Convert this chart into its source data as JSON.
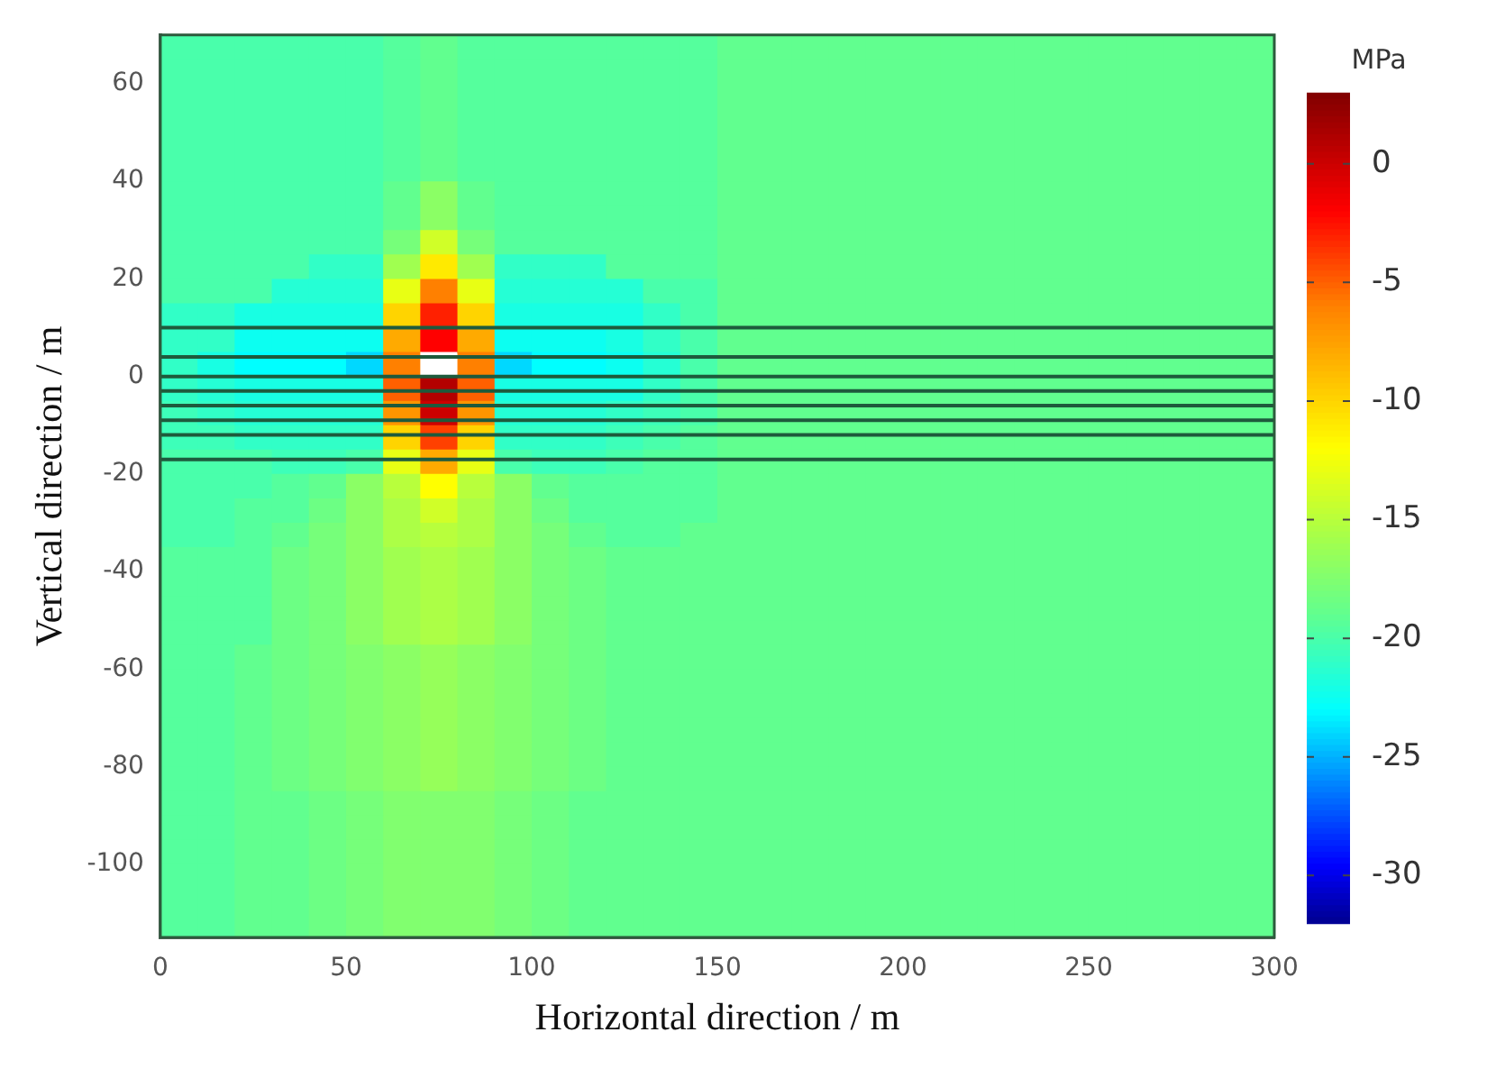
{
  "chart_data": {
    "type": "heatmap",
    "xlabel": "Horizontal direction / m",
    "ylabel": "Vertical direction / m",
    "clabel": "MPa",
    "xlim": [
      0,
      300
    ],
    "xticks": [
      0,
      50,
      100,
      150,
      200,
      250,
      300
    ],
    "ylim": [
      -115,
      70
    ],
    "yticks": [
      -100,
      -80,
      -60,
      -40,
      -20,
      0,
      20,
      40,
      60
    ],
    "clim": [
      -32,
      3
    ],
    "cticks": [
      0,
      -5,
      -10,
      -15,
      -20,
      -25,
      -30
    ],
    "cells": [
      [
        -20,
        -20,
        -20,
        -20,
        -20,
        -20,
        -19.5,
        -19,
        -19.5,
        -19.5,
        -19.5,
        -19.5,
        -19.5,
        -19.5,
        -19.5,
        -19,
        -19,
        -19,
        -19,
        -19,
        -19,
        -19,
        -19,
        -19,
        -19,
        -19,
        -19,
        -19,
        -19,
        -19
      ],
      [
        -20,
        -20,
        -20,
        -20,
        -20,
        -20,
        -19.5,
        -19,
        -19.5,
        -19.5,
        -19.5,
        -19.5,
        -19.5,
        -19.5,
        -19.5,
        -19,
        -19,
        -19,
        -19,
        -19,
        -19,
        -19,
        -19,
        -19,
        -19,
        -19,
        -19,
        -19,
        -19,
        -19
      ],
      [
        -20,
        -20,
        -20,
        -20,
        -20,
        -20,
        -19.5,
        -19,
        -19.5,
        -19.5,
        -19.5,
        -19.5,
        -19.5,
        -19.5,
        -19.5,
        -19,
        -19,
        -19,
        -19,
        -19,
        -19,
        -19,
        -19,
        -19,
        -19,
        -19,
        -19,
        -19,
        -19,
        -19
      ],
      [
        -20,
        -20,
        -20,
        -20,
        -20,
        -20,
        -19.5,
        -19,
        -19.5,
        -19.5,
        -19.5,
        -19.5,
        -19.5,
        -19.5,
        -19.5,
        -19,
        -19,
        -19,
        -19,
        -19,
        -19,
        -19,
        -19,
        -19,
        -19,
        -19,
        -19,
        -19,
        -19,
        -19
      ],
      [
        -20,
        -20,
        -20,
        -20,
        -20,
        -20,
        -19.5,
        -19,
        -19.5,
        -19.5,
        -19.5,
        -19.5,
        -19.5,
        -19.5,
        -19.5,
        -19,
        -19,
        -19,
        -19,
        -19,
        -19,
        -19,
        -19,
        -19,
        -19,
        -19,
        -19,
        -19,
        -19,
        -19
      ],
      [
        -20,
        -20,
        -20,
        -20,
        -20,
        -20,
        -19.5,
        -19,
        -19.5,
        -19.5,
        -19.5,
        -19.5,
        -19.5,
        -19.5,
        -19.5,
        -19,
        -19,
        -19,
        -19,
        -19,
        -19,
        -19,
        -19,
        -19,
        -19,
        -19,
        -19,
        -19,
        -19,
        -19
      ],
      [
        -20,
        -20,
        -20,
        -20,
        -20,
        -20,
        -19,
        -17,
        -19,
        -19.5,
        -19.5,
        -19.5,
        -19.5,
        -19.5,
        -19.5,
        -19,
        -19,
        -19,
        -19,
        -19,
        -19,
        -19,
        -19,
        -19,
        -19,
        -19,
        -19,
        -19,
        -19,
        -19
      ],
      [
        -20,
        -20,
        -20,
        -20,
        -20,
        -20,
        -19,
        -17,
        -19,
        -19.5,
        -19.5,
        -19.5,
        -19.5,
        -19.5,
        -19.5,
        -19,
        -19,
        -19,
        -19,
        -19,
        -19,
        -19,
        -19,
        -19,
        -19,
        -19,
        -19,
        -19,
        -19,
        -19
      ],
      [
        -20,
        -20,
        -20,
        -20,
        -20,
        -20,
        -18,
        -14,
        -18,
        -19.5,
        -19.5,
        -19.5,
        -19.5,
        -19.5,
        -19.5,
        -19,
        -19,
        -19,
        -19,
        -19,
        -19,
        -19,
        -19,
        -19,
        -19,
        -19,
        -19,
        -19,
        -19,
        -19
      ],
      [
        -20,
        -20,
        -20,
        -20,
        -21,
        -21,
        -16,
        -11,
        -16,
        -21,
        -21,
        -21,
        -19.5,
        -19.5,
        -19.5,
        -19,
        -19,
        -19,
        -19,
        -19,
        -19,
        -19,
        -19,
        -19,
        -19,
        -19,
        -19,
        -19,
        -19,
        -19
      ],
      [
        -20,
        -20,
        -20,
        -21.5,
        -21.5,
        -21.5,
        -13,
        -6,
        -13,
        -21.5,
        -21.5,
        -21.5,
        -21.5,
        -20,
        -20,
        -19,
        -19,
        -19,
        -19,
        -19,
        -19,
        -19,
        -19,
        -19,
        -19,
        -19,
        -19,
        -19,
        -19,
        -19
      ],
      [
        -21,
        -21,
        -22,
        -22,
        -22,
        -22,
        -10,
        -3,
        -10,
        -22,
        -22,
        -22,
        -22,
        -21,
        -20,
        -19,
        -19,
        -19,
        -19,
        -19,
        -19,
        -19,
        -19,
        -19,
        -19,
        -19,
        -19,
        -19,
        -19,
        -19
      ],
      [
        -21,
        -21,
        -22.5,
        -22.5,
        -22.5,
        -22.5,
        -8,
        -2,
        -8,
        -22.5,
        -22.5,
        -22.5,
        -22,
        -21,
        -20,
        -19,
        -19,
        -19,
        -19,
        -19,
        -19,
        -19,
        -19,
        -19,
        -19,
        -19,
        -19,
        -19,
        -19,
        -19
      ],
      [
        -21,
        -22,
        -23,
        -23,
        -23,
        -24,
        -6,
        null,
        -6,
        -24,
        -23,
        -23,
        -22.5,
        -21.5,
        -20,
        -19,
        -19,
        -19,
        -19,
        -19,
        -19,
        -19,
        -19,
        -19,
        -19,
        -19,
        -19,
        -19,
        -19,
        -19
      ],
      [
        -21,
        -21.5,
        -22,
        -22,
        -22,
        -22,
        -5,
        1,
        -5,
        -22,
        -22,
        -22,
        -22,
        -21,
        -20,
        -19,
        -19,
        -19,
        -19,
        -19,
        -19,
        -19,
        -19,
        -19,
        -19,
        -19,
        -19,
        -19,
        -19,
        -19
      ],
      [
        -20.5,
        -21,
        -21.5,
        -21.5,
        -21.5,
        -21.5,
        -7,
        0,
        -7,
        -21.5,
        -21.5,
        -21.5,
        -21,
        -20.5,
        -20,
        -19,
        -19,
        -19,
        -19,
        -19,
        -19,
        -19,
        -19,
        -19,
        -19,
        -19,
        -19,
        -19,
        -19,
        -19
      ],
      [
        -20.5,
        -20.5,
        -21,
        -21,
        -21,
        -21,
        -10,
        -4,
        -10,
        -21,
        -21,
        -21,
        -20.5,
        -20,
        -19.5,
        -19,
        -19,
        -19,
        -19,
        -19,
        -19,
        -19,
        -19,
        -19,
        -19,
        -19,
        -19,
        -19,
        -19,
        -19
      ],
      [
        -20,
        -20,
        -20,
        -20.5,
        -20.5,
        -20,
        -13,
        -8,
        -13,
        -20,
        -20.5,
        -20.5,
        -20,
        -19.5,
        -19.5,
        -19,
        -19,
        -19,
        -19,
        -19,
        -19,
        -19,
        -19,
        -19,
        -19,
        -19,
        -19,
        -19,
        -19,
        -19
      ],
      [
        -20,
        -20,
        -20,
        -19.5,
        -19,
        -17,
        -15,
        -12,
        -15,
        -17,
        -19,
        -19.5,
        -19.5,
        -19.5,
        -19.5,
        -19,
        -19,
        -19,
        -19,
        -19,
        -19,
        -19,
        -19,
        -19,
        -19,
        -19,
        -19,
        -19,
        -19,
        -19
      ],
      [
        -20,
        -20,
        -19.5,
        -19.5,
        -18.5,
        -17,
        -15.5,
        -14,
        -15.5,
        -17,
        -18.5,
        -19.5,
        -19.5,
        -19.5,
        -19.5,
        -19,
        -19,
        -19,
        -19,
        -19,
        -19,
        -19,
        -19,
        -19,
        -19,
        -19,
        -19,
        -19,
        -19,
        -19
      ],
      [
        -20,
        -20,
        -19.5,
        -19,
        -18,
        -17,
        -15.5,
        -15,
        -15.5,
        -17,
        -18,
        -19,
        -19.5,
        -19.5,
        -19,
        -19,
        -19,
        -19,
        -19,
        -19,
        -19,
        -19,
        -19,
        -19,
        -19,
        -19,
        -19,
        -19,
        -19,
        -19
      ],
      [
        -19.5,
        -19.5,
        -19.5,
        -18.5,
        -18,
        -17,
        -16,
        -15.5,
        -16,
        -17,
        -18,
        -18.5,
        -19,
        -19,
        -19,
        -19,
        -19,
        -19,
        -19,
        -19,
        -19,
        -19,
        -19,
        -19,
        -19,
        -19,
        -19,
        -19,
        -19,
        -19
      ],
      [
        -19.5,
        -19.5,
        -19.5,
        -18.5,
        -18,
        -17,
        -16,
        -15.5,
        -16,
        -17,
        -18,
        -18.5,
        -19,
        -19,
        -19,
        -19,
        -19,
        -19,
        -19,
        -19,
        -19,
        -19,
        -19,
        -19,
        -19,
        -19,
        -19,
        -19,
        -19,
        -19
      ],
      [
        -19.5,
        -19.5,
        -19.5,
        -18.5,
        -18,
        -17,
        -16,
        -15.5,
        -16,
        -17,
        -18,
        -18.5,
        -19,
        -19,
        -19,
        -19,
        -19,
        -19,
        -19,
        -19,
        -19,
        -19,
        -19,
        -19,
        -19,
        -19,
        -19,
        -19,
        -19,
        -19
      ],
      [
        -19.5,
        -19.5,
        -19.5,
        -18.5,
        -18,
        -17,
        -16,
        -15.5,
        -16,
        -17,
        -18,
        -18.5,
        -19,
        -19,
        -19,
        -19,
        -19,
        -19,
        -19,
        -19,
        -19,
        -19,
        -19,
        -19,
        -19,
        -19,
        -19,
        -19,
        -19,
        -19
      ],
      [
        -19.5,
        -19.5,
        -19,
        -18.5,
        -18,
        -17.5,
        -17,
        -16.5,
        -17,
        -17.5,
        -18,
        -18.5,
        -19,
        -19,
        -19,
        -19,
        -19,
        -19,
        -19,
        -19,
        -19,
        -19,
        -19,
        -19,
        -19,
        -19,
        -19,
        -19,
        -19,
        -19
      ],
      [
        -19.5,
        -19.5,
        -19,
        -18.5,
        -18,
        -17.5,
        -17,
        -16.5,
        -17,
        -17.5,
        -18,
        -18.5,
        -19,
        -19,
        -19,
        -19,
        -19,
        -19,
        -19,
        -19,
        -19,
        -19,
        -19,
        -19,
        -19,
        -19,
        -19,
        -19,
        -19,
        -19
      ],
      [
        -19.5,
        -19.5,
        -19,
        -18.5,
        -18,
        -17.5,
        -17,
        -16.5,
        -17,
        -17.5,
        -18,
        -18.5,
        -19,
        -19,
        -19,
        -19,
        -19,
        -19,
        -19,
        -19,
        -19,
        -19,
        -19,
        -19,
        -19,
        -19,
        -19,
        -19,
        -19,
        -19
      ],
      [
        -19.5,
        -19.5,
        -19,
        -18.5,
        -18,
        -17.5,
        -17,
        -16.5,
        -17,
        -17.5,
        -18,
        -18.5,
        -19,
        -19,
        -19,
        -19,
        -19,
        -19,
        -19,
        -19,
        -19,
        -19,
        -19,
        -19,
        -19,
        -19,
        -19,
        -19,
        -19,
        -19
      ],
      [
        -19.5,
        -19.5,
        -19,
        -18.5,
        -18,
        -17.5,
        -17,
        -16.5,
        -17,
        -17.5,
        -18,
        -18.5,
        -19,
        -19,
        -19,
        -19,
        -19,
        -19,
        -19,
        -19,
        -19,
        -19,
        -19,
        -19,
        -19,
        -19,
        -19,
        -19,
        -19,
        -19
      ],
      [
        -19.5,
        -19.5,
        -19,
        -18.5,
        -18,
        -17.5,
        -17,
        -16.5,
        -17,
        -17.5,
        -18,
        -18.5,
        -19,
        -19,
        -19,
        -19,
        -19,
        -19,
        -19,
        -19,
        -19,
        -19,
        -19,
        -19,
        -19,
        -19,
        -19,
        -19,
        -19,
        -19
      ],
      [
        -19.5,
        -19.5,
        -19,
        -19,
        -18.5,
        -18,
        -17.5,
        -17.5,
        -17.5,
        -18,
        -18.5,
        -19,
        -19,
        -19,
        -19,
        -19,
        -19,
        -19,
        -19,
        -19,
        -19,
        -19,
        -19,
        -19,
        -19,
        -19,
        -19,
        -19,
        -19,
        -19
      ],
      [
        -19.5,
        -19.5,
        -19,
        -19,
        -18.5,
        -18,
        -17.5,
        -17.5,
        -17.5,
        -18,
        -18.5,
        -19,
        -19,
        -19,
        -19,
        -19,
        -19,
        -19,
        -19,
        -19,
        -19,
        -19,
        -19,
        -19,
        -19,
        -19,
        -19,
        -19,
        -19,
        -19
      ],
      [
        -19.5,
        -19.5,
        -19,
        -19,
        -18.5,
        -18,
        -17.5,
        -17.5,
        -17.5,
        -18,
        -18.5,
        -19,
        -19,
        -19,
        -19,
        -19,
        -19,
        -19,
        -19,
        -19,
        -19,
        -19,
        -19,
        -19,
        -19,
        -19,
        -19,
        -19,
        -19,
        -19
      ],
      [
        -19.5,
        -19.5,
        -19,
        -19,
        -18.5,
        -18,
        -17.5,
        -17.5,
        -17.5,
        -18,
        -18.5,
        -19,
        -19,
        -19,
        -19,
        -19,
        -19,
        -19,
        -19,
        -19,
        -19,
        -19,
        -19,
        -19,
        -19,
        -19,
        -19,
        -19,
        -19,
        -19
      ],
      [
        -19.5,
        -19.5,
        -19,
        -19,
        -18.5,
        -18,
        -17.5,
        -17.5,
        -17.5,
        -18,
        -18.5,
        -19,
        -19,
        -19,
        -19,
        -19,
        -19,
        -19,
        -19,
        -19,
        -19,
        -19,
        -19,
        -19,
        -19,
        -19,
        -19,
        -19,
        -19,
        -19
      ],
      [
        -19.5,
        -19.5,
        -19,
        -19,
        -18.5,
        -18,
        -17.5,
        -17.5,
        -17.5,
        -18,
        -18.5,
        -19,
        -19,
        -19,
        -19,
        -19,
        -19,
        -19,
        -19,
        -19,
        -19,
        -19,
        -19,
        -19,
        -19,
        -19,
        -19,
        -19,
        -19,
        -19
      ]
    ],
    "ref_lines": [
      {
        "axis": "y",
        "value": 10,
        "color": "#1e5a3c"
      },
      {
        "axis": "y",
        "value": 4,
        "color": "#1e5a3c"
      },
      {
        "axis": "y",
        "value": 0,
        "color": "#1e5a3c"
      },
      {
        "axis": "y",
        "value": -3,
        "color": "#1e5a3c"
      },
      {
        "axis": "y",
        "value": -6,
        "color": "#1e5a3c"
      },
      {
        "axis": "y",
        "value": -9,
        "color": "#1e5a3c"
      },
      {
        "axis": "y",
        "value": -12,
        "color": "#1e5a3c"
      },
      {
        "axis": "y",
        "value": -17,
        "color": "#1e5a3c"
      }
    ]
  }
}
